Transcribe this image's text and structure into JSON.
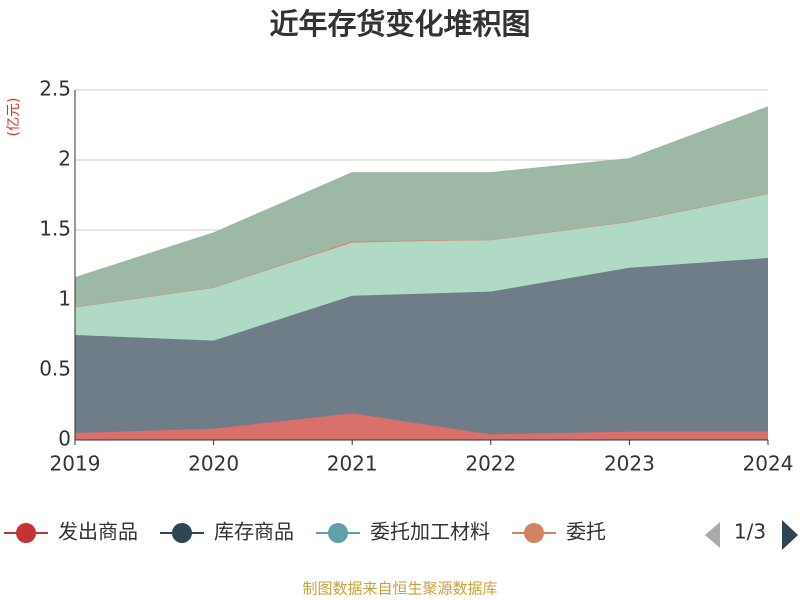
{
  "chart_data": {
    "type": "stacked-area",
    "title": "近年存货变化堆积图",
    "y_unit": "(亿元)",
    "categories": [
      "2019",
      "2020",
      "2021",
      "2022",
      "2023",
      "2024"
    ],
    "series": [
      {
        "name": "发出商品",
        "color": "#c23531",
        "fill": "#d9706b",
        "values": [
          0.05,
          0.08,
          0.19,
          0.04,
          0.06,
          0.06
        ]
      },
      {
        "name": "库存商品",
        "color": "#2f4554",
        "fill": "#6e7d88",
        "values": [
          0.7,
          0.63,
          0.84,
          1.02,
          1.17,
          1.24
        ]
      },
      {
        "name": "委托加工材料",
        "color": "#61a0a8",
        "fill": "#b0d9c6",
        "values": [
          0.2,
          0.38,
          0.38,
          0.37,
          0.33,
          0.46
        ]
      },
      {
        "name": "委托",
        "color": "#d48265",
        "fill": "#d9896b",
        "values": [
          0,
          0,
          0.01,
          0,
          0,
          0
        ]
      },
      {
        "name": null,
        "color": "#91c7ae",
        "fill": "#9db8a5",
        "values": [
          0.21,
          0.39,
          0.49,
          0.48,
          0.45,
          0.62
        ]
      }
    ],
    "ylim": [
      0,
      2.5
    ],
    "yticks": [
      0,
      0.5,
      1,
      1.5,
      2,
      2.5
    ],
    "grid": true,
    "legend_page": "1/3",
    "source": "制图数据来自恒生聚源数据库"
  }
}
